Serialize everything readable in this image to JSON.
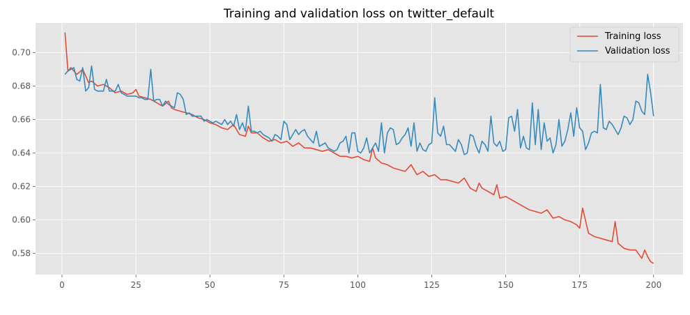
{
  "chart_data": {
    "type": "line",
    "title": "Training and validation loss on twitter_default",
    "xlabel": "",
    "ylabel": "",
    "xlim": [
      -8.95,
      209.95
    ],
    "ylim": [
      0.5673,
      0.7177
    ],
    "xticks": [
      0,
      25,
      50,
      75,
      100,
      125,
      150,
      175,
      200
    ],
    "yticks": [
      0.58,
      0.6,
      0.62,
      0.64,
      0.66,
      0.68,
      0.7
    ],
    "ytick_labels": [
      "0.58",
      "0.60",
      "0.62",
      "0.64",
      "0.66",
      "0.68",
      "0.70"
    ],
    "grid": true,
    "legend_position": "top-right",
    "series": [
      {
        "name": "Training loss",
        "color": "#E24A33",
        "points": [
          [
            1,
            0.712
          ],
          [
            2,
            0.689
          ],
          [
            3,
            0.691
          ],
          [
            5,
            0.687
          ],
          [
            7,
            0.69
          ],
          [
            8,
            0.686
          ],
          [
            9,
            0.682
          ],
          [
            10,
            0.683
          ],
          [
            12,
            0.68
          ],
          [
            14,
            0.681
          ],
          [
            16,
            0.679
          ],
          [
            18,
            0.676
          ],
          [
            20,
            0.677
          ],
          [
            22,
            0.675
          ],
          [
            24,
            0.676
          ],
          [
            25,
            0.678
          ],
          [
            26,
            0.674
          ],
          [
            28,
            0.673
          ],
          [
            30,
            0.672
          ],
          [
            32,
            0.67
          ],
          [
            34,
            0.668
          ],
          [
            36,
            0.671
          ],
          [
            37,
            0.667
          ],
          [
            38,
            0.666
          ],
          [
            40,
            0.665
          ],
          [
            42,
            0.664
          ],
          [
            44,
            0.663
          ],
          [
            46,
            0.661
          ],
          [
            48,
            0.66
          ],
          [
            50,
            0.658
          ],
          [
            52,
            0.657
          ],
          [
            54,
            0.655
          ],
          [
            56,
            0.654
          ],
          [
            58,
            0.657
          ],
          [
            60,
            0.651
          ],
          [
            62,
            0.65
          ],
          [
            63,
            0.656
          ],
          [
            64,
            0.652
          ],
          [
            66,
            0.652
          ],
          [
            68,
            0.649
          ],
          [
            70,
            0.647
          ],
          [
            72,
            0.648
          ],
          [
            74,
            0.646
          ],
          [
            76,
            0.647
          ],
          [
            78,
            0.644
          ],
          [
            80,
            0.646
          ],
          [
            82,
            0.643
          ],
          [
            84,
            0.643
          ],
          [
            86,
            0.642
          ],
          [
            88,
            0.641
          ],
          [
            90,
            0.642
          ],
          [
            92,
            0.64
          ],
          [
            94,
            0.638
          ],
          [
            96,
            0.638
          ],
          [
            98,
            0.637
          ],
          [
            100,
            0.638
          ],
          [
            102,
            0.636
          ],
          [
            104,
            0.635
          ],
          [
            105,
            0.643
          ],
          [
            106,
            0.637
          ],
          [
            108,
            0.634
          ],
          [
            110,
            0.633
          ],
          [
            112,
            0.631
          ],
          [
            114,
            0.63
          ],
          [
            116,
            0.629
          ],
          [
            118,
            0.633
          ],
          [
            120,
            0.627
          ],
          [
            122,
            0.629
          ],
          [
            124,
            0.626
          ],
          [
            126,
            0.627
          ],
          [
            128,
            0.624
          ],
          [
            130,
            0.624
          ],
          [
            132,
            0.623
          ],
          [
            134,
            0.622
          ],
          [
            136,
            0.625
          ],
          [
            138,
            0.619
          ],
          [
            140,
            0.617
          ],
          [
            141,
            0.622
          ],
          [
            142,
            0.619
          ],
          [
            144,
            0.617
          ],
          [
            146,
            0.615
          ],
          [
            147,
            0.621
          ],
          [
            148,
            0.613
          ],
          [
            150,
            0.614
          ],
          [
            152,
            0.612
          ],
          [
            154,
            0.61
          ],
          [
            156,
            0.608
          ],
          [
            158,
            0.606
          ],
          [
            160,
            0.605
          ],
          [
            162,
            0.604
          ],
          [
            164,
            0.606
          ],
          [
            166,
            0.601
          ],
          [
            168,
            0.602
          ],
          [
            170,
            0.6
          ],
          [
            172,
            0.599
          ],
          [
            174,
            0.597
          ],
          [
            175,
            0.595
          ],
          [
            176,
            0.607
          ],
          [
            178,
            0.592
          ],
          [
            180,
            0.59
          ],
          [
            182,
            0.589
          ],
          [
            184,
            0.588
          ],
          [
            186,
            0.587
          ],
          [
            187,
            0.599
          ],
          [
            188,
            0.586
          ],
          [
            190,
            0.583
          ],
          [
            192,
            0.582
          ],
          [
            194,
            0.582
          ],
          [
            196,
            0.577
          ],
          [
            197,
            0.582
          ],
          [
            198,
            0.578
          ],
          [
            199,
            0.575
          ],
          [
            200,
            0.574
          ]
        ]
      },
      {
        "name": "Validation loss",
        "color": "#348ABD",
        "points": [
          [
            1,
            0.687
          ],
          [
            2,
            0.689
          ],
          [
            3,
            0.69
          ],
          [
            4,
            0.691
          ],
          [
            5,
            0.684
          ],
          [
            6,
            0.683
          ],
          [
            7,
            0.691
          ],
          [
            8,
            0.677
          ],
          [
            9,
            0.679
          ],
          [
            10,
            0.692
          ],
          [
            11,
            0.678
          ],
          [
            12,
            0.677
          ],
          [
            13,
            0.677
          ],
          [
            14,
            0.677
          ],
          [
            15,
            0.684
          ],
          [
            16,
            0.677
          ],
          [
            17,
            0.677
          ],
          [
            18,
            0.677
          ],
          [
            19,
            0.681
          ],
          [
            20,
            0.676
          ],
          [
            21,
            0.675
          ],
          [
            22,
            0.674
          ],
          [
            23,
            0.674
          ],
          [
            24,
            0.674
          ],
          [
            25,
            0.674
          ],
          [
            26,
            0.673
          ],
          [
            27,
            0.673
          ],
          [
            28,
            0.672
          ],
          [
            29,
            0.672
          ],
          [
            30,
            0.69
          ],
          [
            31,
            0.671
          ],
          [
            32,
            0.672
          ],
          [
            33,
            0.672
          ],
          [
            34,
            0.668
          ],
          [
            35,
            0.671
          ],
          [
            36,
            0.669
          ],
          [
            37,
            0.668
          ],
          [
            38,
            0.667
          ],
          [
            39,
            0.676
          ],
          [
            40,
            0.675
          ],
          [
            41,
            0.672
          ],
          [
            42,
            0.663
          ],
          [
            43,
            0.664
          ],
          [
            44,
            0.662
          ],
          [
            45,
            0.662
          ],
          [
            46,
            0.662
          ],
          [
            47,
            0.662
          ],
          [
            48,
            0.659
          ],
          [
            49,
            0.66
          ],
          [
            50,
            0.659
          ],
          [
            51,
            0.658
          ],
          [
            52,
            0.659
          ],
          [
            53,
            0.658
          ],
          [
            54,
            0.657
          ],
          [
            55,
            0.66
          ],
          [
            56,
            0.657
          ],
          [
            57,
            0.659
          ],
          [
            58,
            0.656
          ],
          [
            59,
            0.663
          ],
          [
            60,
            0.654
          ],
          [
            61,
            0.658
          ],
          [
            62,
            0.653
          ],
          [
            63,
            0.668
          ],
          [
            64,
            0.653
          ],
          [
            65,
            0.653
          ],
          [
            66,
            0.652
          ],
          [
            67,
            0.653
          ],
          [
            68,
            0.651
          ],
          [
            69,
            0.65
          ],
          [
            70,
            0.649
          ],
          [
            71,
            0.647
          ],
          [
            72,
            0.651
          ],
          [
            73,
            0.65
          ],
          [
            74,
            0.648
          ],
          [
            75,
            0.659
          ],
          [
            76,
            0.657
          ],
          [
            77,
            0.648
          ],
          [
            78,
            0.651
          ],
          [
            79,
            0.654
          ],
          [
            80,
            0.651
          ],
          [
            81,
            0.653
          ],
          [
            82,
            0.654
          ],
          [
            83,
            0.65
          ],
          [
            84,
            0.648
          ],
          [
            85,
            0.646
          ],
          [
            86,
            0.653
          ],
          [
            87,
            0.644
          ],
          [
            88,
            0.645
          ],
          [
            89,
            0.646
          ],
          [
            90,
            0.643
          ],
          [
            91,
            0.642
          ],
          [
            92,
            0.641
          ],
          [
            93,
            0.642
          ],
          [
            94,
            0.646
          ],
          [
            95,
            0.647
          ],
          [
            96,
            0.65
          ],
          [
            97,
            0.64
          ],
          [
            98,
            0.652
          ],
          [
            99,
            0.652
          ],
          [
            100,
            0.641
          ],
          [
            101,
            0.64
          ],
          [
            102,
            0.643
          ],
          [
            103,
            0.649
          ],
          [
            104,
            0.64
          ],
          [
            105,
            0.643
          ],
          [
            106,
            0.646
          ],
          [
            107,
            0.641
          ],
          [
            108,
            0.658
          ],
          [
            109,
            0.64
          ],
          [
            110,
            0.652
          ],
          [
            111,
            0.655
          ],
          [
            112,
            0.654
          ],
          [
            113,
            0.645
          ],
          [
            114,
            0.646
          ],
          [
            115,
            0.649
          ],
          [
            116,
            0.651
          ],
          [
            117,
            0.655
          ],
          [
            118,
            0.644
          ],
          [
            119,
            0.658
          ],
          [
            120,
            0.641
          ],
          [
            121,
            0.646
          ],
          [
            122,
            0.642
          ],
          [
            123,
            0.641
          ],
          [
            124,
            0.645
          ],
          [
            125,
            0.646
          ],
          [
            126,
            0.673
          ],
          [
            127,
            0.652
          ],
          [
            128,
            0.65
          ],
          [
            129,
            0.656
          ],
          [
            130,
            0.645
          ],
          [
            131,
            0.645
          ],
          [
            132,
            0.643
          ],
          [
            133,
            0.641
          ],
          [
            134,
            0.648
          ],
          [
            135,
            0.645
          ],
          [
            136,
            0.639
          ],
          [
            137,
            0.64
          ],
          [
            138,
            0.651
          ],
          [
            139,
            0.65
          ],
          [
            140,
            0.644
          ],
          [
            141,
            0.64
          ],
          [
            142,
            0.647
          ],
          [
            143,
            0.645
          ],
          [
            144,
            0.641
          ],
          [
            145,
            0.662
          ],
          [
            146,
            0.646
          ],
          [
            147,
            0.644
          ],
          [
            148,
            0.647
          ],
          [
            149,
            0.641
          ],
          [
            150,
            0.642
          ],
          [
            151,
            0.661
          ],
          [
            152,
            0.662
          ],
          [
            153,
            0.653
          ],
          [
            154,
            0.666
          ],
          [
            155,
            0.643
          ],
          [
            156,
            0.65
          ],
          [
            157,
            0.643
          ],
          [
            158,
            0.642
          ],
          [
            159,
            0.67
          ],
          [
            160,
            0.645
          ],
          [
            161,
            0.666
          ],
          [
            162,
            0.642
          ],
          [
            163,
            0.658
          ],
          [
            164,
            0.647
          ],
          [
            165,
            0.649
          ],
          [
            166,
            0.64
          ],
          [
            167,
            0.645
          ],
          [
            168,
            0.66
          ],
          [
            169,
            0.644
          ],
          [
            170,
            0.647
          ],
          [
            171,
            0.654
          ],
          [
            172,
            0.664
          ],
          [
            173,
            0.65
          ],
          [
            174,
            0.667
          ],
          [
            175,
            0.655
          ],
          [
            176,
            0.653
          ],
          [
            177,
            0.642
          ],
          [
            178,
            0.646
          ],
          [
            179,
            0.652
          ],
          [
            180,
            0.653
          ],
          [
            181,
            0.652
          ],
          [
            182,
            0.681
          ],
          [
            183,
            0.655
          ],
          [
            184,
            0.654
          ],
          [
            185,
            0.659
          ],
          [
            186,
            0.657
          ],
          [
            187,
            0.654
          ],
          [
            188,
            0.651
          ],
          [
            189,
            0.655
          ],
          [
            190,
            0.662
          ],
          [
            191,
            0.661
          ],
          [
            192,
            0.657
          ],
          [
            193,
            0.66
          ],
          [
            194,
            0.671
          ],
          [
            195,
            0.67
          ],
          [
            196,
            0.665
          ],
          [
            197,
            0.663
          ],
          [
            198,
            0.687
          ],
          [
            199,
            0.676
          ],
          [
            200,
            0.662
          ]
        ]
      }
    ]
  }
}
